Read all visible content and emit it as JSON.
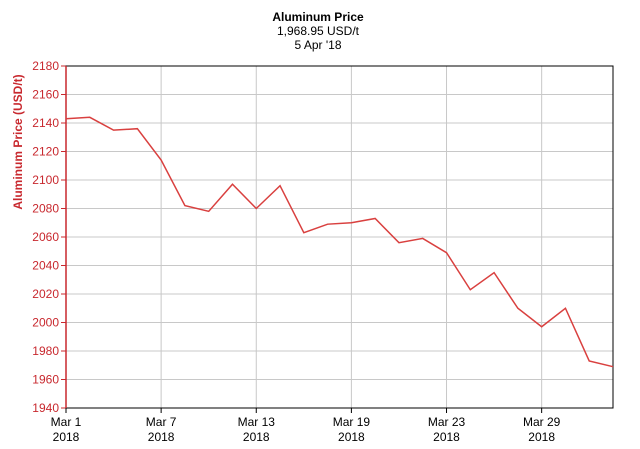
{
  "chart_data": {
    "type": "line",
    "title": "Aluminum Price",
    "subtitle": "1,968.95 USD/t",
    "date_label": "5 Apr '18",
    "y_label": "Aluminum Price (USD/t)",
    "categories": [
      "Mar 1",
      null,
      null,
      null,
      "Mar 7",
      null,
      null,
      null,
      "Mar 13",
      null,
      null,
      null,
      "Mar 19",
      null,
      null,
      null,
      "Mar 23",
      null,
      null,
      null,
      "Mar 29",
      null,
      null,
      null
    ],
    "category_years": [
      "2018",
      null,
      null,
      null,
      "2018",
      null,
      null,
      null,
      "2018",
      null,
      null,
      null,
      "2018",
      null,
      null,
      null,
      "2018",
      null,
      null,
      null,
      "2018",
      null,
      null,
      null
    ],
    "series": [
      {
        "name": "Aluminum Price",
        "color": "#d9403f",
        "values": [
          2143,
          2144,
          2135,
          2136,
          2114,
          2082,
          2078,
          2097,
          2080,
          2096,
          2063,
          2069,
          2070,
          2073,
          2056,
          2059,
          2049,
          2023,
          2035,
          2010,
          1997,
          2010,
          1973,
          1969
        ]
      }
    ],
    "ylim": [
      1940,
      2180
    ],
    "yticks": [
      1940,
      1960,
      1980,
      2000,
      2020,
      2040,
      2060,
      2080,
      2100,
      2120,
      2140,
      2160,
      2180
    ],
    "grid": true
  }
}
